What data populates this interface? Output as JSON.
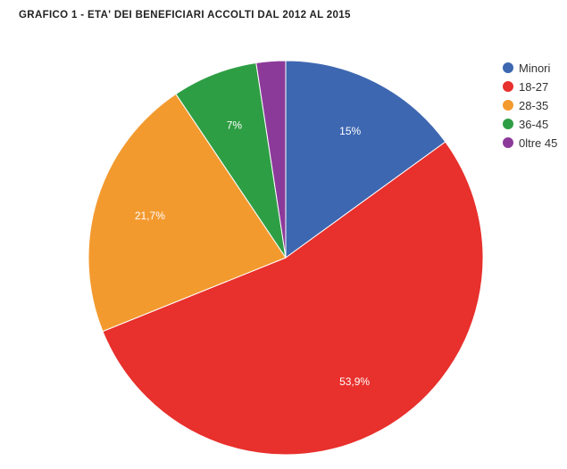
{
  "chart_data": {
    "type": "pie",
    "title": "GRAFICO 1 - ETA' DEI BENEFICIARI ACCOLTI DAL 2012 AL 2015",
    "legend_position": "right",
    "categories": [
      "Minori",
      "18-27",
      "28-35",
      "36-45",
      "0ltre 45"
    ],
    "values": [
      15,
      53.9,
      21.7,
      7,
      2.4
    ],
    "data_labels": [
      "15%",
      "53,9%",
      "21,7%",
      "7%",
      ""
    ],
    "colors": [
      "#3e67b1",
      "#e8302c",
      "#f39a2f",
      "#2e9e44",
      "#8c3a9a"
    ]
  }
}
